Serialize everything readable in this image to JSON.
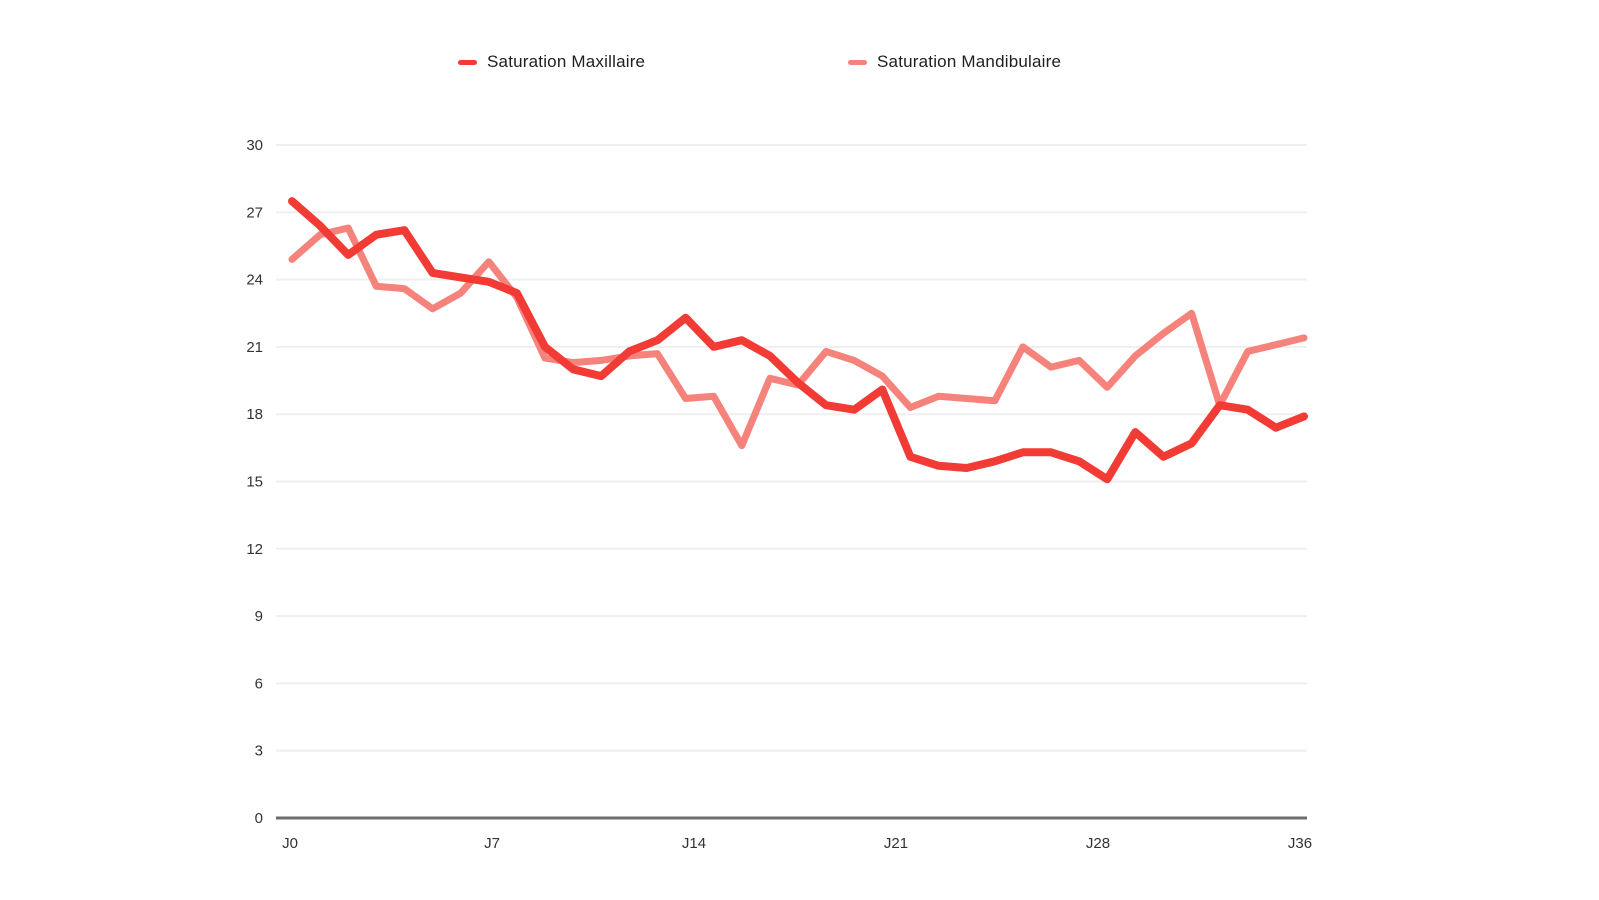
{
  "page": {
    "background": "#ffffff"
  },
  "legend": {
    "items": [
      {
        "label": "Saturation Maxillaire",
        "color": "#f13b34"
      },
      {
        "label": "Saturation Mandibulaire",
        "color": "#f5837c"
      }
    ]
  },
  "chart_data": {
    "type": "line",
    "title": "",
    "xlabel": "",
    "ylabel": "",
    "categories": [
      "J0",
      "J1",
      "J2",
      "J3",
      "J4",
      "J5",
      "J6",
      "J7",
      "J8",
      "J9",
      "J10",
      "J11",
      "J12",
      "J13",
      "J14",
      "J15",
      "J16",
      "J17",
      "J18",
      "J19",
      "J20",
      "J21",
      "J22",
      "J23",
      "J24",
      "J25",
      "J26",
      "J27",
      "J28",
      "J29",
      "J30",
      "J31",
      "J32",
      "J33",
      "J34",
      "J35",
      "J36"
    ],
    "x_tick_labels": [
      "J0",
      "J7",
      "J14",
      "J21",
      "J28",
      "J36"
    ],
    "y_ticks": [
      0,
      3,
      6,
      9,
      12,
      15,
      18,
      21,
      24,
      27,
      30
    ],
    "ylim": [
      0,
      30
    ],
    "grid": "horizontal",
    "legend_position": "top",
    "series": [
      {
        "name": "Saturation Maxillaire",
        "color": "#f13b34",
        "stroke_width": 8,
        "values": [
          27.5,
          26.4,
          25.1,
          26.0,
          26.2,
          24.3,
          24.1,
          23.9,
          23.4,
          21.0,
          20.0,
          19.7,
          20.8,
          21.3,
          22.3,
          21.0,
          21.3,
          20.6,
          19.4,
          18.4,
          18.2,
          19.1,
          16.1,
          15.7,
          15.6,
          15.9,
          16.3,
          16.3,
          15.9,
          15.1,
          17.2,
          16.1,
          16.7,
          18.4,
          18.2,
          17.4,
          17.9
        ]
      },
      {
        "name": "Saturation Mandibulaire",
        "color": "#f5837c",
        "stroke_width": 7,
        "values": [
          24.9,
          26.0,
          26.3,
          23.7,
          23.6,
          22.7,
          23.4,
          24.8,
          23.2,
          20.5,
          20.3,
          20.4,
          20.6,
          20.7,
          18.7,
          18.8,
          16.6,
          19.6,
          19.3,
          20.8,
          20.4,
          19.7,
          18.3,
          18.8,
          18.7,
          18.6,
          21.0,
          20.1,
          20.4,
          19.2,
          20.6,
          21.6,
          22.5,
          18.4,
          20.8,
          21.1,
          21.4
        ]
      }
    ],
    "axis_colors": {
      "baseline": "#6e6e6e",
      "grid": "#efefef",
      "tick_text": "#333333"
    }
  }
}
